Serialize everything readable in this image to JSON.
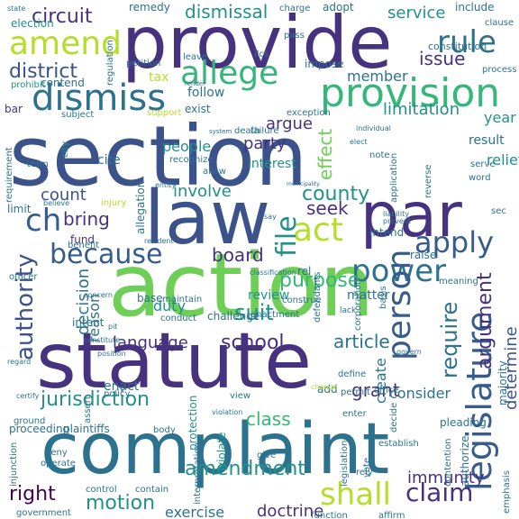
{
  "word_cloud": {
    "palette": {
      "deep_purple": "#46327e",
      "indigo": "#3b528b",
      "blue": "#365c8d",
      "steel_blue": "#2c728e",
      "teal": "#277f8e",
      "green_teal": "#21918c",
      "green": "#35b779",
      "light_green": "#6ece58",
      "yellow_green": "#b5de2b",
      "dark_purple": "#440154"
    },
    "words": [
      {
        "text": "section"
      },
      {
        "text": "statute"
      },
      {
        "text": "complaint"
      },
      {
        "text": "action"
      },
      {
        "text": "provide"
      },
      {
        "text": "law"
      },
      {
        "text": "par"
      },
      {
        "text": "provision"
      },
      {
        "text": "dismiss"
      },
      {
        "text": "amend"
      },
      {
        "text": "allege"
      },
      {
        "text": "rule"
      },
      {
        "text": "power"
      },
      {
        "text": "legislature"
      },
      {
        "text": "person"
      },
      {
        "text": "act"
      },
      {
        "text": "apply"
      },
      {
        "text": "because"
      },
      {
        "text": "ch"
      },
      {
        "text": "file"
      },
      {
        "text": "shall"
      },
      {
        "text": "claim"
      },
      {
        "text": "amendment"
      },
      {
        "text": "jurisdiction"
      },
      {
        "text": "right"
      },
      {
        "text": "motion"
      },
      {
        "text": "school"
      },
      {
        "text": "article"
      },
      {
        "text": "language"
      },
      {
        "text": "authority"
      },
      {
        "text": "require"
      },
      {
        "text": "determine"
      },
      {
        "text": "argument"
      },
      {
        "text": "purpose"
      },
      {
        "text": "board"
      },
      {
        "text": "suit"
      },
      {
        "text": "duty"
      },
      {
        "text": "decision"
      },
      {
        "text": "reason"
      },
      {
        "text": "circuit"
      },
      {
        "text": "dismissal"
      },
      {
        "text": "service"
      },
      {
        "text": "district"
      },
      {
        "text": "issue"
      },
      {
        "text": "member"
      },
      {
        "text": "limitation"
      },
      {
        "text": "argue"
      },
      {
        "text": "year"
      },
      {
        "text": "count"
      },
      {
        "text": "bring"
      },
      {
        "text": "county"
      },
      {
        "text": "seek"
      },
      {
        "text": "involve"
      },
      {
        "text": "party"
      },
      {
        "text": "people"
      },
      {
        "text": "interest"
      },
      {
        "text": "effect"
      },
      {
        "text": "relief"
      },
      {
        "text": "grant"
      },
      {
        "text": "consider"
      },
      {
        "text": "create"
      },
      {
        "text": "class"
      },
      {
        "text": "immunity"
      },
      {
        "text": "doctrine"
      },
      {
        "text": "exercise"
      },
      {
        "text": "cite"
      },
      {
        "text": "tax"
      },
      {
        "text": "follow"
      },
      {
        "text": "exist"
      },
      {
        "text": "result"
      },
      {
        "text": "review"
      },
      {
        "text": "matter"
      },
      {
        "text": "enact"
      },
      {
        "text": "intent"
      },
      {
        "text": "constitution"
      },
      {
        "text": "include"
      },
      {
        "text": "election"
      },
      {
        "text": "remedy"
      },
      {
        "text": "adopt"
      },
      {
        "text": "charge"
      },
      {
        "text": "clause"
      },
      {
        "text": "pass"
      },
      {
        "text": "contend"
      },
      {
        "text": "petition"
      },
      {
        "text": "leave"
      },
      {
        "text": "impose"
      },
      {
        "text": "prohibit"
      },
      {
        "text": "regulation"
      },
      {
        "text": "process"
      },
      {
        "text": "bar"
      },
      {
        "text": "support"
      },
      {
        "text": "requirement"
      },
      {
        "text": "term"
      },
      {
        "text": "limit"
      },
      {
        "text": "fund"
      },
      {
        "text": "city"
      },
      {
        "text": "injury"
      },
      {
        "text": "allegation"
      },
      {
        "text": "recognize"
      },
      {
        "text": "allow"
      },
      {
        "text": "failure"
      },
      {
        "text": "individual"
      },
      {
        "text": "note"
      },
      {
        "text": "application"
      },
      {
        "text": "reverse"
      },
      {
        "text": "serve"
      },
      {
        "text": "word"
      },
      {
        "text": "intend"
      },
      {
        "text": "rel"
      },
      {
        "text": "construe"
      },
      {
        "text": "raise"
      },
      {
        "text": "meaning"
      },
      {
        "text": "basis"
      },
      {
        "text": "enactment"
      },
      {
        "text": "conduct"
      },
      {
        "text": "challenge"
      },
      {
        "text": "defendants"
      },
      {
        "text": "corporation"
      },
      {
        "text": "base"
      },
      {
        "text": "maintain"
      },
      {
        "text": "benefit"
      },
      {
        "text": "officer"
      },
      {
        "text": "policy"
      },
      {
        "text": "view"
      },
      {
        "text": "add"
      },
      {
        "text": "protection"
      },
      {
        "text": "violate"
      },
      {
        "text": "interpretation"
      },
      {
        "text": "give"
      },
      {
        "text": "rely"
      },
      {
        "text": "establish"
      },
      {
        "text": "authorize"
      },
      {
        "text": "pleading"
      },
      {
        "text": "majority"
      },
      {
        "text": "office"
      },
      {
        "text": "decide"
      },
      {
        "text": "define"
      },
      {
        "text": "permit"
      },
      {
        "text": "enter"
      },
      {
        "text": "vote"
      },
      {
        "text": "legislation"
      },
      {
        "text": "contention"
      },
      {
        "text": "emphasis"
      },
      {
        "text": "ground"
      },
      {
        "text": "assert"
      },
      {
        "text": "proceeding"
      },
      {
        "text": "plaintiffs"
      },
      {
        "text": "body"
      },
      {
        "text": "deny"
      },
      {
        "text": "operate"
      },
      {
        "text": "injunction"
      },
      {
        "text": "government"
      },
      {
        "text": "control"
      },
      {
        "text": "contain"
      },
      {
        "text": "function"
      },
      {
        "text": "affirm"
      },
      {
        "text": "state"
      },
      {
        "text": "exception"
      },
      {
        "text": "system"
      },
      {
        "text": "elect"
      },
      {
        "text": "ilcs"
      },
      {
        "text": "render"
      },
      {
        "text": "subject"
      },
      {
        "text": "death"
      },
      {
        "text": "liability"
      },
      {
        "text": "prevent"
      },
      {
        "text": "classification"
      },
      {
        "text": "resident"
      },
      {
        "text": "concern"
      },
      {
        "text": "pit"
      },
      {
        "text": "position"
      },
      {
        "text": "constitute"
      },
      {
        "text": "lack"
      },
      {
        "text": "govern"
      },
      {
        "text": "sec"
      },
      {
        "text": "entity"
      },
      {
        "text": "believe"
      },
      {
        "text": "say"
      },
      {
        "text": "municipality"
      },
      {
        "text": "change"
      },
      {
        "text": "violation"
      },
      {
        "text": "certify"
      },
      {
        "text": "regard"
      }
    ]
  }
}
